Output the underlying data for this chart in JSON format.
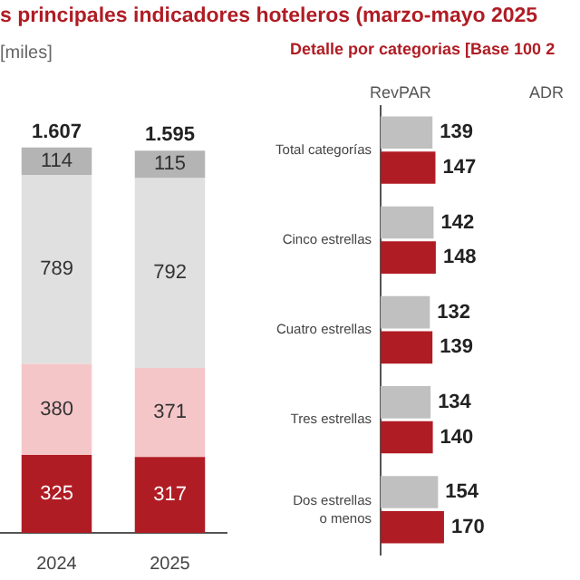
{
  "chart_data": [
    {
      "type": "bar",
      "title": "s principales indicadores hoteleros (marzo-mayo 2025",
      "ylabel": "[miles]",
      "categories": [
        "2024",
        "2025"
      ],
      "stacked": true,
      "data_labels": true,
      "totals": [
        "1.607",
        "1.595"
      ],
      "series": [
        {
          "color": "#b01c24",
          "values": [
            325,
            317
          ]
        },
        {
          "color": "#f5c6c8",
          "values": [
            380,
            371
          ]
        },
        {
          "color": "#e0e0e0",
          "values": [
            789,
            792
          ]
        },
        {
          "color": "#b4b4b4",
          "values": [
            114,
            115
          ]
        }
      ]
    },
    {
      "type": "bar",
      "orientation": "horizontal",
      "title": "Detalle por categorias [Base 100 2",
      "annotations": [
        "RevPAR",
        "ADR"
      ],
      "categories": [
        "Total categorías",
        "Cinco estrellas",
        "Cuatro estrellas",
        "Tres estrellas",
        "Dos estrellas o menos"
      ],
      "data_labels": true,
      "series": [
        {
          "color": "#c0c0c0",
          "values": [
            139,
            142,
            132,
            134,
            154
          ]
        },
        {
          "color": "#b01c24",
          "values": [
            147,
            148,
            139,
            140,
            170
          ]
        }
      ]
    }
  ]
}
